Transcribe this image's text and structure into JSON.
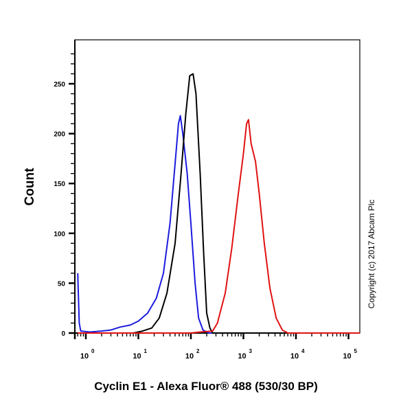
{
  "chart_data": {
    "type": "line",
    "title": "",
    "xlabel": "Cyclin E1 - Alexa Fluor® 488 (530/30 BP)",
    "ylabel": "Count",
    "xscale": "log",
    "xlim": [
      0.7,
      250000
    ],
    "ylim": [
      0,
      290
    ],
    "x_tick_labels": [
      "10^0",
      "10^1",
      "10^2",
      "10^3",
      "10^4",
      "10^5"
    ],
    "y_ticks": [
      0,
      50,
      100,
      150,
      200,
      250
    ],
    "grid": false,
    "legend": null,
    "annotation": "Copyright (c) 2017 Abcam Plc",
    "series": [
      {
        "name": "blue",
        "color": "#1a1adc",
        "points": [
          [
            0.7,
            60
          ],
          [
            0.75,
            10
          ],
          [
            0.8,
            2
          ],
          [
            1.2,
            1
          ],
          [
            2,
            2
          ],
          [
            3,
            3
          ],
          [
            4.5,
            6
          ],
          [
            7,
            8
          ],
          [
            10,
            12
          ],
          [
            15,
            20
          ],
          [
            22,
            35
          ],
          [
            30,
            60
          ],
          [
            40,
            110
          ],
          [
            50,
            170
          ],
          [
            58,
            210
          ],
          [
            63,
            218
          ],
          [
            70,
            200
          ],
          [
            85,
            160
          ],
          [
            100,
            110
          ],
          [
            120,
            50
          ],
          [
            140,
            15
          ],
          [
            170,
            3
          ],
          [
            220,
            0
          ],
          [
            250000,
            0
          ]
        ]
      },
      {
        "name": "black",
        "color": "#000000",
        "points": [
          [
            0.7,
            0
          ],
          [
            8,
            0
          ],
          [
            12,
            2
          ],
          [
            18,
            5
          ],
          [
            25,
            15
          ],
          [
            35,
            40
          ],
          [
            50,
            90
          ],
          [
            65,
            160
          ],
          [
            80,
            220
          ],
          [
            95,
            258
          ],
          [
            110,
            260
          ],
          [
            125,
            240
          ],
          [
            150,
            160
          ],
          [
            175,
            80
          ],
          [
            200,
            20
          ],
          [
            230,
            5
          ],
          [
            260,
            0
          ],
          [
            250000,
            0
          ]
        ]
      },
      {
        "name": "red",
        "color": "#e01010",
        "points": [
          [
            0.7,
            0
          ],
          [
            100,
            0
          ],
          [
            150,
            1
          ],
          [
            260,
            2
          ],
          [
            320,
            10
          ],
          [
            450,
            40
          ],
          [
            600,
            85
          ],
          [
            800,
            140
          ],
          [
            1000,
            180
          ],
          [
            1150,
            210
          ],
          [
            1250,
            214
          ],
          [
            1400,
            190
          ],
          [
            1700,
            172
          ],
          [
            2000,
            140
          ],
          [
            2500,
            90
          ],
          [
            3200,
            45
          ],
          [
            4200,
            15
          ],
          [
            5500,
            3
          ],
          [
            7000,
            0
          ],
          [
            250000,
            0
          ]
        ]
      }
    ]
  }
}
